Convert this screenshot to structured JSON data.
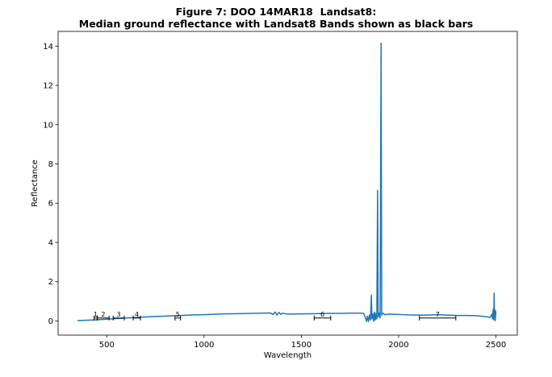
{
  "chart_data": {
    "type": "line",
    "title_line1": "Figure 7: DOO 14MAR18  Landsat8:",
    "title_line2": "Median ground reflectance with Landsat8 Bands shown as black bars",
    "xlabel": "Wavelength",
    "ylabel": "Reflectance",
    "xlim": [
      250,
      2610
    ],
    "ylim": [
      -0.72,
      14.75
    ],
    "xticks": [
      500,
      1000,
      1500,
      2000,
      2500
    ],
    "yticks": [
      0,
      2,
      4,
      6,
      8,
      10,
      12,
      14
    ],
    "grid": false,
    "series": [
      {
        "color": "#1f77b4",
        "points": [
          [
            350,
            0.02
          ],
          [
            400,
            0.04
          ],
          [
            450,
            0.06
          ],
          [
            500,
            0.09
          ],
          [
            550,
            0.12
          ],
          [
            600,
            0.15
          ],
          [
            650,
            0.18
          ],
          [
            700,
            0.21
          ],
          [
            750,
            0.23
          ],
          [
            800,
            0.25
          ],
          [
            850,
            0.27
          ],
          [
            900,
            0.29
          ],
          [
            950,
            0.31
          ],
          [
            1000,
            0.32
          ],
          [
            1050,
            0.34
          ],
          [
            1100,
            0.36
          ],
          [
            1150,
            0.37
          ],
          [
            1200,
            0.38
          ],
          [
            1250,
            0.39
          ],
          [
            1300,
            0.4
          ],
          [
            1340,
            0.41
          ],
          [
            1355,
            0.33
          ],
          [
            1365,
            0.46
          ],
          [
            1375,
            0.3
          ],
          [
            1385,
            0.44
          ],
          [
            1395,
            0.34
          ],
          [
            1405,
            0.4
          ],
          [
            1420,
            0.36
          ],
          [
            1450,
            0.35
          ],
          [
            1500,
            0.36
          ],
          [
            1550,
            0.37
          ],
          [
            1600,
            0.38
          ],
          [
            1650,
            0.39
          ],
          [
            1700,
            0.39
          ],
          [
            1750,
            0.4
          ],
          [
            1800,
            0.4
          ],
          [
            1820,
            0.39
          ],
          [
            1830,
            0.15
          ],
          [
            1835,
            -0.02
          ],
          [
            1840,
            0.25
          ],
          [
            1845,
            -0.03
          ],
          [
            1850,
            0.3
          ],
          [
            1855,
            0.05
          ],
          [
            1860,
            1.32
          ],
          [
            1863,
            0.1
          ],
          [
            1868,
            0.35
          ],
          [
            1872,
            -0.02
          ],
          [
            1876,
            0.45
          ],
          [
            1880,
            0.05
          ],
          [
            1884,
            0.38
          ],
          [
            1888,
            0.1
          ],
          [
            1892,
            6.65
          ],
          [
            1895,
            0.2
          ],
          [
            1900,
            0.4
          ],
          [
            1905,
            0.15
          ],
          [
            1910,
            14.15
          ],
          [
            1913,
            0.3
          ],
          [
            1920,
            0.4
          ],
          [
            1930,
            0.32
          ],
          [
            1950,
            0.35
          ],
          [
            2000,
            0.33
          ],
          [
            2050,
            0.31
          ],
          [
            2100,
            0.3
          ],
          [
            2150,
            0.3
          ],
          [
            2200,
            0.32
          ],
          [
            2250,
            0.3
          ],
          [
            2300,
            0.28
          ],
          [
            2350,
            0.28
          ],
          [
            2400,
            0.27
          ],
          [
            2450,
            0.22
          ],
          [
            2470,
            0.18
          ],
          [
            2480,
            0.35
          ],
          [
            2483,
            0.1
          ],
          [
            2486,
            0.6
          ],
          [
            2489,
            0.05
          ],
          [
            2491,
            1.42
          ],
          [
            2493,
            0.2
          ],
          [
            2495,
            0.55
          ],
          [
            2497,
            0.02
          ],
          [
            2499,
            0.5
          ],
          [
            2500,
            0.3
          ]
        ]
      }
    ],
    "bands": [
      {
        "label": "1",
        "start": 435,
        "end": 451
      },
      {
        "label": "2",
        "start": 452,
        "end": 512
      },
      {
        "label": "3",
        "start": 533,
        "end": 590
      },
      {
        "label": "4",
        "start": 636,
        "end": 673
      },
      {
        "label": "5",
        "start": 851,
        "end": 879
      },
      {
        "label": "6",
        "start": 1566,
        "end": 1651
      },
      {
        "label": "7",
        "start": 2107,
        "end": 2294
      }
    ],
    "band_color": "#000000",
    "band_y": 0.15
  }
}
